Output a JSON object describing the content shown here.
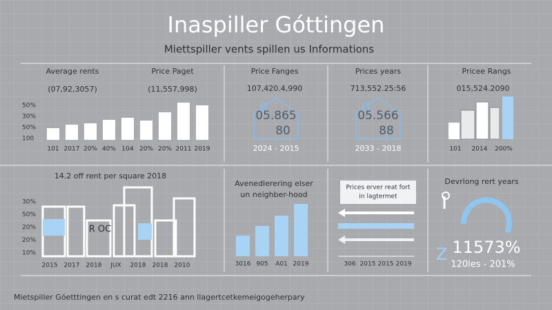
{
  "header": {
    "title": "Inaspiller Góttingen",
    "subtitle": "Miettspiller vents spillen us Informations"
  },
  "panel_rents": {
    "label_left": "Average rents",
    "label_right": "Price Paget",
    "value_left": "(07,92,3057)",
    "value_right": "(11,557,998)",
    "y_labels": [
      "50%",
      "30%",
      "50%",
      "100"
    ],
    "categories": [
      "101",
      "2017",
      "20%",
      "40%",
      "104",
      "20%",
      "20%",
      "2011",
      "2019"
    ],
    "values": [
      17,
      22,
      24,
      29,
      32,
      28,
      40,
      54,
      50
    ]
  },
  "panel_price_ranges": {
    "title": "Price Fanges",
    "value": "107,420.4,990",
    "house_top": "05.865",
    "house_bottom": "80",
    "range": "2024 -  2015"
  },
  "panel_price_years": {
    "title": "Prices years",
    "value": "713,552.25:56",
    "house_top": "05.566",
    "house_bottom": "88",
    "range": "2033 -  2018"
  },
  "panel_price_rangs": {
    "title": "Pricee Rangs",
    "value": "015,524.2090",
    "categories": [
      "101",
      "2014",
      "200%"
    ]
  },
  "panel_square": {
    "title": "14.2 off rent per square 2018",
    "y_labels": [
      "30%",
      "50%",
      "20%",
      "20%",
      "10%"
    ],
    "sign": "R OC",
    "categories": [
      "2015",
      "2017",
      "2018",
      "JUX",
      "2018",
      "2018",
      "2010"
    ]
  },
  "panel_neighborhood": {
    "title_line1": "Avenedlerering elser",
    "title_line2": "un neighber-hood",
    "categories": [
      "3016",
      "905",
      "A01",
      "2019"
    ],
    "values": [
      30,
      44,
      59,
      76
    ]
  },
  "panel_arrows": {
    "box_line1": "Prices  erver reat fort",
    "box_line2": "in lagtermet",
    "categories": [
      "306",
      "2015",
      "2015",
      "2019"
    ]
  },
  "panel_gauge": {
    "title": "Devrlong rert years",
    "letter": "Z",
    "value": "11573%",
    "range": "120les - 201%"
  },
  "footer": "Mietspiller Góetttingen en s curat edt 2216 ann llagertcetkemeigogeherpary"
}
